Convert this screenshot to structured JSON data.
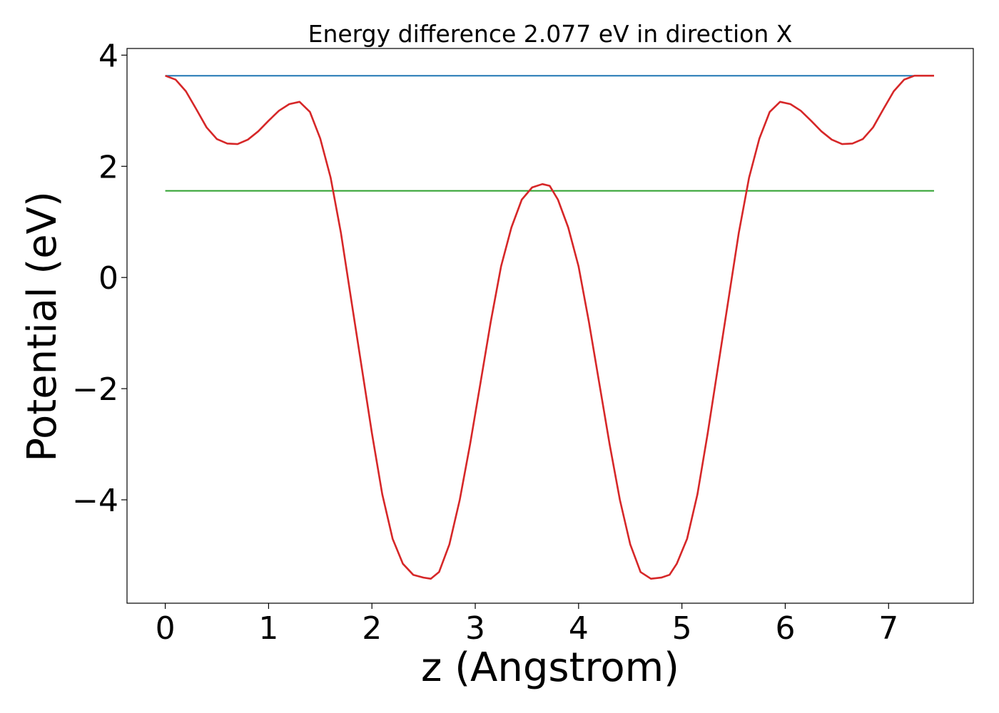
{
  "chart_data": {
    "type": "line",
    "title": "Energy difference 2.077 eV in direction X",
    "xlabel": "z (Angstrom)",
    "ylabel": "Potential (eV)",
    "xlim": [
      -0.37,
      7.82
    ],
    "ylim": [
      -5.86,
      4.12
    ],
    "grid": false,
    "xticks": [
      {
        "value": 0,
        "label": "0"
      },
      {
        "value": 1,
        "label": "1"
      },
      {
        "value": 2,
        "label": "2"
      },
      {
        "value": 3,
        "label": "3"
      },
      {
        "value": 4,
        "label": "4"
      },
      {
        "value": 5,
        "label": "5"
      },
      {
        "value": 6,
        "label": "6"
      },
      {
        "value": 7,
        "label": "7"
      }
    ],
    "yticks": [
      {
        "value": -4,
        "label": "−4"
      },
      {
        "value": -2,
        "label": "−2"
      },
      {
        "value": 0,
        "label": "0"
      },
      {
        "value": 2,
        "label": "2"
      },
      {
        "value": 4,
        "label": "4"
      }
    ],
    "series": [
      {
        "color": "#1f77b4",
        "x": [
          0,
          7.44
        ],
        "y": [
          3.63,
          3.63
        ]
      },
      {
        "color": "#2ca02c",
        "x": [
          0,
          7.44
        ],
        "y": [
          1.56,
          1.56
        ]
      },
      {
        "color": "#d62728",
        "x": [
          0,
          0.1,
          0.2,
          0.3,
          0.4,
          0.5,
          0.6,
          0.7,
          0.8,
          0.9,
          1.0,
          1.1,
          1.2,
          1.3,
          1.4,
          1.5,
          1.6,
          1.7,
          1.8,
          1.9,
          2.0,
          2.1,
          2.2,
          2.3,
          2.4,
          2.5,
          2.57,
          2.65,
          2.75,
          2.85,
          2.95,
          3.05,
          3.15,
          3.25,
          3.35,
          3.45,
          3.55,
          3.65,
          3.72,
          3.8,
          3.9,
          4.0,
          4.1,
          4.2,
          4.3,
          4.4,
          4.5,
          4.6,
          4.7,
          4.8,
          4.88,
          4.95,
          5.05,
          5.15,
          5.25,
          5.35,
          5.45,
          5.55,
          5.65,
          5.75,
          5.85,
          5.95,
          6.05,
          6.15,
          6.25,
          6.35,
          6.45,
          6.55,
          6.65,
          6.75,
          6.85,
          6.95,
          7.05,
          7.15,
          7.25,
          7.35,
          7.44
        ],
        "y": [
          3.63,
          3.56,
          3.35,
          3.03,
          2.7,
          2.49,
          2.41,
          2.4,
          2.48,
          2.63,
          2.82,
          3.0,
          3.12,
          3.16,
          2.98,
          2.5,
          1.8,
          0.8,
          -0.4,
          -1.6,
          -2.8,
          -3.9,
          -4.7,
          -5.15,
          -5.35,
          -5.4,
          -5.42,
          -5.3,
          -4.8,
          -4.0,
          -3.0,
          -1.9,
          -0.8,
          0.2,
          0.9,
          1.4,
          1.62,
          1.68,
          1.65,
          1.4,
          0.9,
          0.2,
          -0.8,
          -1.9,
          -3.0,
          -4.0,
          -4.8,
          -5.3,
          -5.42,
          -5.4,
          -5.35,
          -5.15,
          -4.7,
          -3.9,
          -2.8,
          -1.6,
          -0.4,
          0.8,
          1.8,
          2.5,
          2.98,
          3.16,
          3.12,
          3.0,
          2.82,
          2.63,
          2.48,
          2.4,
          2.41,
          2.49,
          2.7,
          3.03,
          3.35,
          3.56,
          3.63,
          3.63,
          3.63
        ]
      }
    ]
  }
}
